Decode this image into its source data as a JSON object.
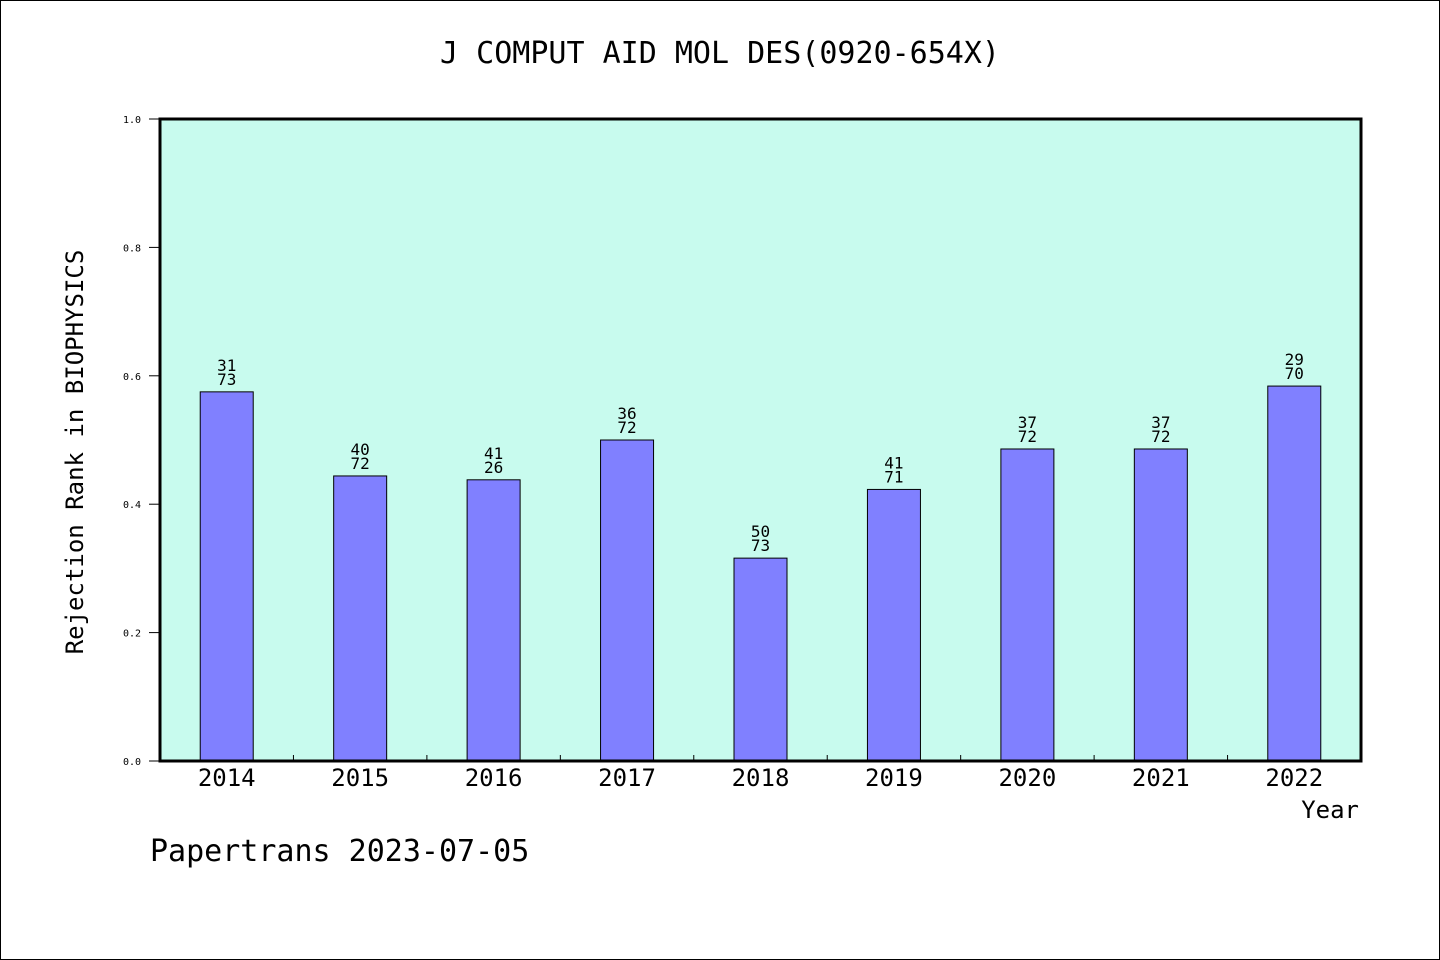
{
  "chart_data": {
    "type": "bar",
    "title": "J COMPUT AID MOL DES(0920-654X)",
    "xlabel": "Year",
    "ylabel": "Rejection Rank in BIOPHYSICS",
    "footer": "Papertrans 2023-07-05",
    "ylim": [
      0,
      1.0
    ],
    "yticks": [
      "0.0",
      "0.2",
      "0.4",
      "0.6",
      "0.8",
      "1.0"
    ],
    "categories": [
      "2014",
      "2015",
      "2016",
      "2017",
      "2018",
      "2019",
      "2020",
      "2021",
      "2022"
    ],
    "values": [
      0.575,
      0.444,
      0.438,
      0.5,
      0.316,
      0.423,
      0.486,
      0.486,
      0.584
    ],
    "labels_top": [
      "31",
      "40",
      "41",
      "36",
      "50",
      "41",
      "37",
      "37",
      "29"
    ],
    "labels_bottom": [
      "73",
      "72",
      "26",
      "72",
      "73",
      "71",
      "72",
      "72",
      "70"
    ],
    "colors": {
      "plot_bg": "#c8fbee",
      "bar": "#8080ff"
    },
    "grid": false,
    "legend": "none"
  }
}
